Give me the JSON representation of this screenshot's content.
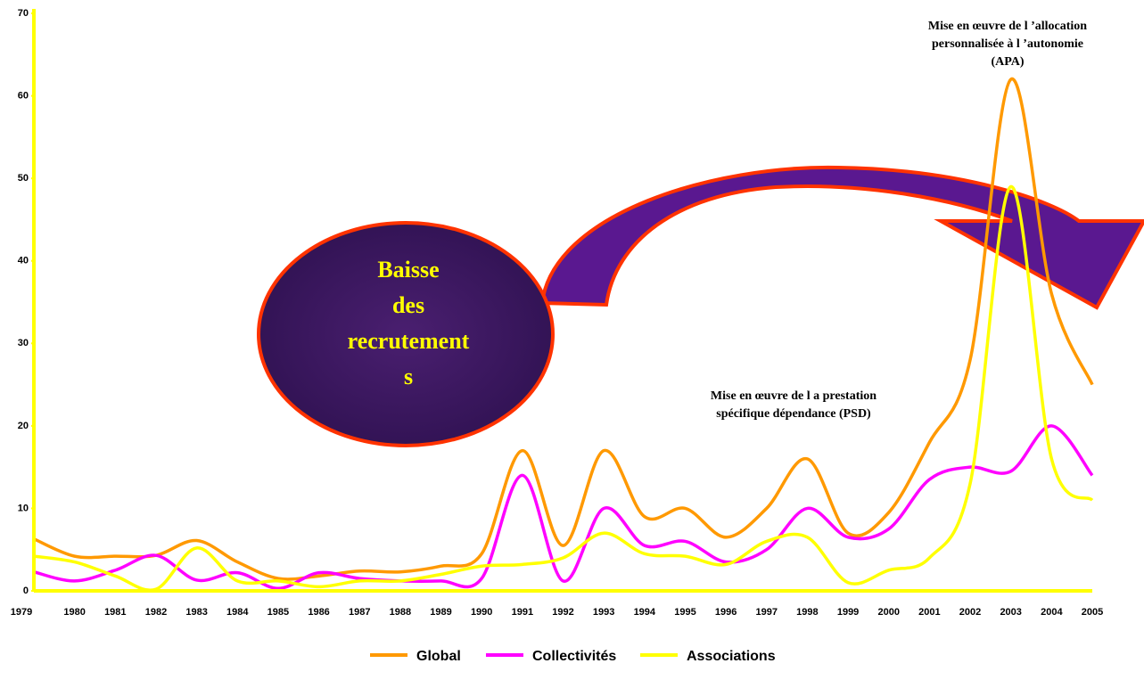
{
  "chart_data": {
    "type": "line",
    "categories": [
      "1979",
      "1980",
      "1981",
      "1982",
      "1983",
      "1984",
      "1985",
      "1986",
      "1987",
      "1988",
      "1989",
      "1990",
      "1991",
      "1992",
      "1993",
      "1994",
      "1995",
      "1996",
      "1997",
      "1998",
      "1999",
      "2000",
      "2001",
      "2002",
      "2003",
      "2004",
      "2005"
    ],
    "series": [
      {
        "name": "Global",
        "color": "#FF9900",
        "values": [
          6.3,
          4.2,
          4.2,
          4.3,
          6.1,
          3.5,
          1.5,
          1.8,
          2.4,
          2.3,
          3.0,
          4.5,
          17,
          5.5,
          17,
          9,
          10,
          6.5,
          10,
          16,
          7,
          9.5,
          18,
          28,
          62,
          36,
          25
        ]
      },
      {
        "name": "Collectivités",
        "color": "#FF00FF",
        "values": [
          2.3,
          1.2,
          2.5,
          4.3,
          1.3,
          2.2,
          0.3,
          2.2,
          1.5,
          1.2,
          1.2,
          1.5,
          14,
          1.2,
          10,
          5.5,
          6,
          3.5,
          5,
          10,
          6.5,
          7.5,
          13.5,
          15,
          14.5,
          20,
          14
        ]
      },
      {
        "name": "Associations",
        "color": "#FFFF00",
        "values": [
          4.2,
          3.5,
          1.8,
          0.2,
          5.2,
          1.2,
          1.2,
          0.5,
          1.2,
          1.2,
          2.0,
          3.0,
          3.2,
          4.0,
          7.0,
          4.5,
          4.2,
          3.2,
          6.0,
          6.5,
          1.0,
          2.5,
          4.0,
          13,
          49,
          16,
          11
        ]
      }
    ],
    "ylim": [
      0,
      70
    ],
    "yticks": [
      0,
      10,
      20,
      30,
      40,
      50,
      60,
      70
    ],
    "grid": false,
    "axis_color": "#FFFF00",
    "annotations": {
      "apa": [
        "Mise en œuvre de l ’allocation",
        "personnalisée à l ’autonomie",
        "(APA)"
      ],
      "psd": [
        "Mise en œuvre de l a prestation",
        "spécifique dépendance (PSD)"
      ],
      "bubble": [
        "Baisse",
        "des",
        "recrutement",
        "s"
      ]
    }
  }
}
